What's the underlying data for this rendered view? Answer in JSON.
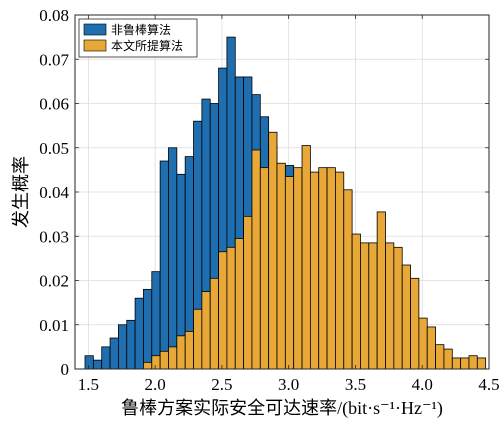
{
  "chart_data": {
    "type": "histogram",
    "xlabel": "鲁棒方案实际安全可达速率/(bit·s⁻¹·Hz⁻¹)",
    "ylabel": "发生概率",
    "xlim": [
      1.4,
      4.5
    ],
    "ylim": [
      0,
      0.08
    ],
    "bin_width": 0.0625,
    "grid": true,
    "legend_position": "top-left",
    "x_ticks": [
      1.5,
      2.0,
      2.5,
      3.0,
      3.5,
      4.0,
      4.5
    ],
    "x_tick_labels": [
      "1.5",
      "2.0",
      "2.5",
      "3.0",
      "3.5",
      "4.0",
      "4.5"
    ],
    "y_ticks": [
      0,
      0.01,
      0.02,
      0.03,
      0.04,
      0.05,
      0.06,
      0.07,
      0.08
    ],
    "y_tick_labels": [
      "0",
      "0.01",
      "0.02",
      "0.03",
      "0.04",
      "0.05",
      "0.06",
      "0.07",
      "0.08"
    ],
    "series": [
      {
        "name": "非鲁棒算法",
        "color": "#1f6fb0",
        "bin_starts": [
          1.475,
          1.5375,
          1.6,
          1.6625,
          1.725,
          1.7875,
          1.85,
          1.9125,
          1.975,
          2.0375,
          2.1,
          2.1625,
          2.225,
          2.2875,
          2.35,
          2.4125,
          2.475,
          2.5375,
          2.6,
          2.6625,
          2.725,
          2.7875,
          2.85,
          2.9125,
          2.975,
          3.0375
        ],
        "values": [
          0.003,
          0.002,
          0.005,
          0.007,
          0.01,
          0.011,
          0.016,
          0.018,
          0.022,
          0.047,
          0.05,
          0.044,
          0.048,
          0.056,
          0.061,
          0.06,
          0.068,
          0.075,
          0.066,
          0.066,
          0.062,
          0.057,
          0.0505,
          0.044,
          0.046,
          0.027
        ]
      },
      {
        "name": "本文所提算法",
        "color": "#e8a838",
        "bin_starts": [
          1.9125,
          1.975,
          2.0375,
          2.1,
          2.1625,
          2.225,
          2.2875,
          2.35,
          2.4125,
          2.475,
          2.5375,
          2.6,
          2.6625,
          2.725,
          2.7875,
          2.85,
          2.9125,
          2.975,
          3.0375,
          3.1,
          3.1625,
          3.225,
          3.2875,
          3.35,
          3.4125,
          3.475,
          3.5375,
          3.6,
          3.6625,
          3.725,
          3.7875,
          3.85,
          3.9125,
          3.975,
          4.0375,
          4.1,
          4.1625,
          4.225,
          4.2875,
          4.35,
          4.4125
        ],
        "values": [
          0.0015,
          0.003,
          0.004,
          0.005,
          0.0075,
          0.0085,
          0.0135,
          0.0175,
          0.0205,
          0.0265,
          0.0275,
          0.0295,
          0.0345,
          0.0495,
          0.0455,
          0.0535,
          0.0465,
          0.0435,
          0.0455,
          0.0505,
          0.0445,
          0.0455,
          0.0455,
          0.0445,
          0.0405,
          0.0305,
          0.0285,
          0.0285,
          0.0355,
          0.0285,
          0.0275,
          0.0235,
          0.0205,
          0.0115,
          0.0095,
          0.0055,
          0.0045,
          0.0025,
          0.0025,
          0.003,
          0.0025
        ]
      }
    ]
  }
}
